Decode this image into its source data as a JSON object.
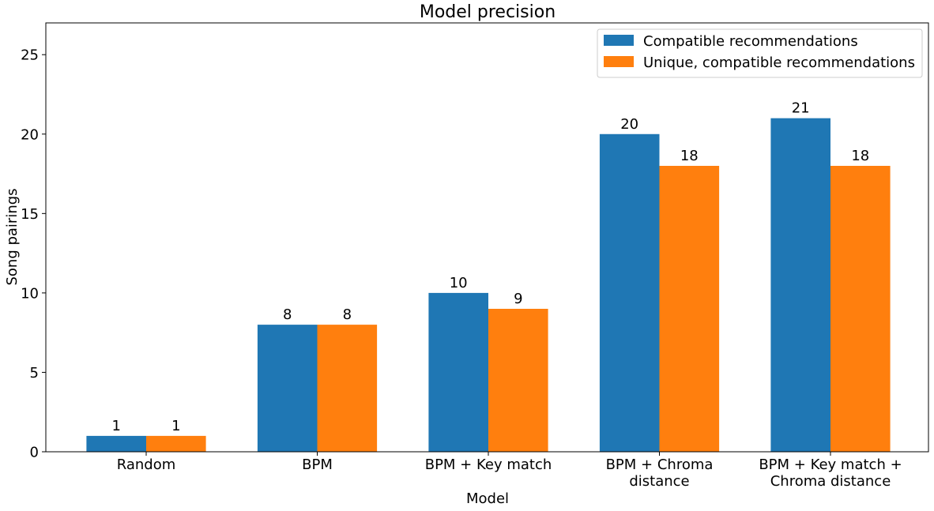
{
  "chart_data": {
    "type": "bar",
    "title": "Model precision",
    "xlabel": "Model",
    "ylabel": "Song pairings",
    "ylim": [
      0,
      27
    ],
    "yticks": [
      0,
      5,
      10,
      15,
      20,
      25
    ],
    "grid": false,
    "legend_position": "top-right",
    "categories": [
      [
        "Random"
      ],
      [
        "BPM"
      ],
      [
        "BPM + Key match"
      ],
      [
        "BPM + Chroma",
        "distance"
      ],
      [
        "BPM + Key match +",
        "Chroma distance"
      ]
    ],
    "series": [
      {
        "name": "Compatible recommendations",
        "color": "#1f77b4",
        "values": [
          1,
          8,
          10,
          20,
          21
        ]
      },
      {
        "name": "Unique, compatible recommendations",
        "color": "#ff7f0e",
        "values": [
          1,
          8,
          9,
          18,
          18
        ]
      }
    ]
  }
}
